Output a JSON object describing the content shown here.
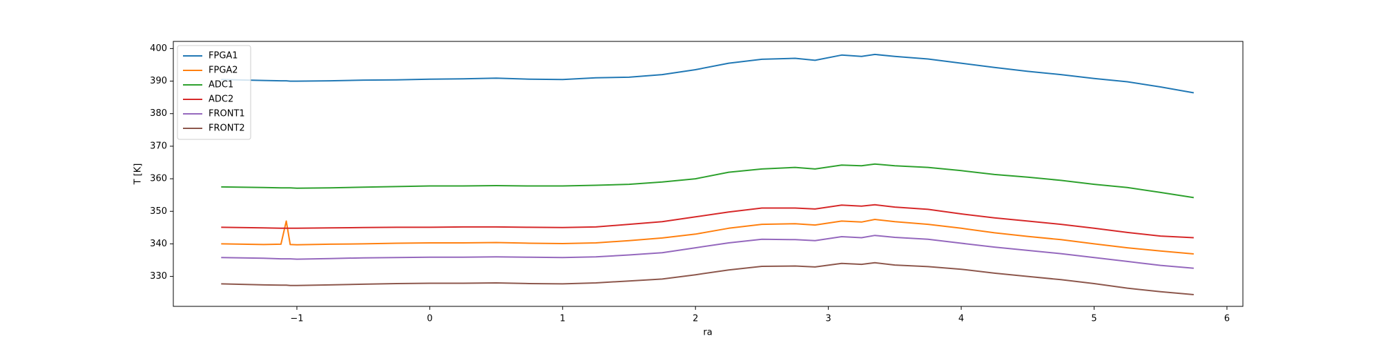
{
  "chart_data": {
    "type": "line",
    "x_label": "ra",
    "y_label": "T [K]",
    "x": [
      -1.57,
      -1.25,
      -1.12,
      -1.08,
      -1.05,
      -1.0,
      -0.75,
      -0.5,
      -0.25,
      0,
      0.25,
      0.5,
      0.75,
      1.0,
      1.25,
      1.5,
      1.75,
      2.0,
      2.25,
      2.5,
      2.75,
      2.9,
      3.1,
      3.25,
      3.35,
      3.5,
      3.75,
      4.0,
      4.25,
      4.5,
      4.75,
      5.0,
      5.25,
      5.5,
      5.75
    ],
    "series": [
      {
        "name": "FPGA1",
        "color": "#1f77b4",
        "values": [
          390.5,
          390.2,
          390.1,
          390.1,
          390.0,
          390.0,
          390.1,
          390.3,
          390.4,
          390.6,
          390.7,
          390.9,
          390.6,
          390.5,
          391.0,
          391.2,
          392.0,
          393.5,
          395.5,
          396.7,
          397.0,
          396.4,
          398.0,
          397.6,
          398.2,
          397.6,
          396.8,
          395.5,
          394.2,
          393.0,
          392.0,
          390.8,
          389.8,
          388.2,
          386.4
        ]
      },
      {
        "name": "FPGA2",
        "color": "#ff7f0e",
        "values": [
          340.0,
          339.8,
          339.9,
          347.0,
          339.8,
          339.7,
          339.9,
          340.0,
          340.2,
          340.3,
          340.3,
          340.4,
          340.2,
          340.1,
          340.3,
          341.0,
          341.8,
          343.0,
          344.8,
          346.0,
          346.2,
          345.8,
          347.0,
          346.7,
          347.5,
          346.8,
          346.0,
          344.8,
          343.4,
          342.3,
          341.3,
          340.0,
          338.8,
          337.8,
          336.9
        ]
      },
      {
        "name": "ADC1",
        "color": "#2ca02c",
        "values": [
          357.5,
          357.3,
          357.2,
          357.2,
          357.2,
          357.1,
          357.2,
          357.4,
          357.6,
          357.8,
          357.8,
          357.9,
          357.8,
          357.8,
          358.0,
          358.3,
          359.0,
          360.0,
          362.0,
          363.0,
          363.5,
          363.0,
          364.2,
          364.0,
          364.5,
          364.0,
          363.5,
          362.5,
          361.3,
          360.5,
          359.5,
          358.3,
          357.3,
          355.8,
          354.2
        ]
      },
      {
        "name": "ADC2",
        "color": "#d62728",
        "values": [
          345.1,
          344.9,
          344.8,
          344.8,
          344.8,
          344.8,
          344.9,
          345.0,
          345.1,
          345.1,
          345.2,
          345.2,
          345.1,
          345.0,
          345.2,
          346.0,
          346.8,
          348.3,
          349.8,
          351.0,
          351.0,
          350.7,
          351.9,
          351.6,
          352.0,
          351.3,
          350.6,
          349.2,
          348.0,
          347.0,
          346.0,
          344.8,
          343.5,
          342.4,
          341.9
        ]
      },
      {
        "name": "FRONT1",
        "color": "#9467bd",
        "values": [
          335.8,
          335.6,
          335.4,
          335.4,
          335.4,
          335.3,
          335.5,
          335.7,
          335.8,
          335.9,
          335.9,
          336.0,
          335.9,
          335.8,
          336.0,
          336.6,
          337.3,
          338.8,
          340.3,
          341.4,
          341.3,
          341.0,
          342.2,
          341.9,
          342.6,
          342.0,
          341.4,
          340.2,
          339.0,
          338.0,
          337.0,
          335.8,
          334.6,
          333.4,
          332.5
        ]
      },
      {
        "name": "FRONT2",
        "color": "#8c564b",
        "values": [
          327.7,
          327.4,
          327.3,
          327.3,
          327.2,
          327.2,
          327.4,
          327.6,
          327.8,
          327.9,
          327.9,
          328.0,
          327.8,
          327.7,
          328.0,
          328.6,
          329.2,
          330.5,
          332.0,
          333.1,
          333.2,
          332.9,
          334.0,
          333.7,
          334.2,
          333.5,
          333.0,
          332.2,
          331.0,
          330.0,
          329.0,
          327.8,
          326.4,
          325.3,
          324.4
        ]
      }
    ],
    "xlim": [
      -1.93,
      6.12
    ],
    "ylim": [
      320.8,
      402.2
    ],
    "xticks": [
      {
        "value": -1,
        "label": "−1"
      },
      0,
      1,
      2,
      3,
      4,
      5,
      6
    ],
    "yticks": [
      330,
      340,
      350,
      360,
      370,
      380,
      390,
      400
    ],
    "legend": "upper-left"
  }
}
